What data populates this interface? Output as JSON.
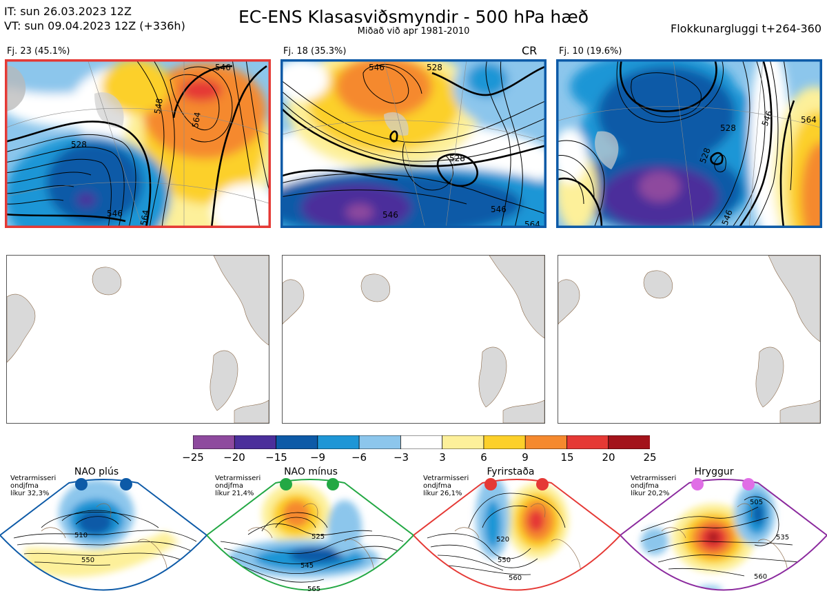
{
  "header": {
    "it_line": "IT: sun 26.03.2023 12Z",
    "vt_line": "VT: sun 09.04.2023 12Z  (+336h)",
    "title": "EC-ENS Klasasviðsmyndir - 500 hPa hæð",
    "subtitle": "Miðað við apr 1981-2010",
    "window": "Flokkunargluggi t+264-360"
  },
  "clusters": [
    {
      "label": "Fj. 23 (45.1%)",
      "members": 23,
      "percent": 45.1,
      "border_color": "#e53935",
      "contours": [
        "528",
        "546",
        "546",
        "548",
        "564",
        "564"
      ]
    },
    {
      "label": "Fj. 18 (35.3%)",
      "members": 18,
      "percent": 35.3,
      "border_color": "#0d5aa7",
      "tag": "CR",
      "contours": [
        "546",
        "528",
        "528",
        "546",
        "546",
        "564"
      ]
    },
    {
      "label": "Fj. 10 (19.6%)",
      "members": 10,
      "percent": 19.6,
      "border_color": "#0d5aa7",
      "contours": [
        "528",
        "528",
        "546",
        "564",
        "546"
      ]
    }
  ],
  "colorbar": {
    "ticks": [
      "−25",
      "−20",
      "−15",
      "−9",
      "−6",
      "−3",
      "3",
      "6",
      "9",
      "15",
      "20",
      "25"
    ],
    "colors": [
      "#8e4a9e",
      "#4b2f9b",
      "#0d5aa7",
      "#1e96d6",
      "#8cc6ec",
      "#ffffff",
      "#fdf09a",
      "#fcd02a",
      "#f5892e",
      "#e53935",
      "#a3131b"
    ]
  },
  "regimes": [
    {
      "name": "NAO plús",
      "season": "Vetrarmisseri",
      "level": "ondjfma",
      "prob": "líkur 32,3%",
      "color": "#0d5aa7",
      "contours": [
        "510",
        "550"
      ]
    },
    {
      "name": "NAO mínus",
      "season": "Vetrarmisseri",
      "level": "ondjfma",
      "prob": "líkur 21,4%",
      "color": "#23a844",
      "contours": [
        "525",
        "545",
        "565"
      ]
    },
    {
      "name": "Fyrirstaða",
      "season": "Vetrarmisseri",
      "level": "ondjfma",
      "prob": "líkur 26,1%",
      "color": "#e53935",
      "contours": [
        "520",
        "550",
        "560"
      ]
    },
    {
      "name": "Hryggur",
      "season": "Vetrarmisseri",
      "level": "ondjfma",
      "prob": "líkur 20,2%",
      "color": "#e06ee6",
      "contours": [
        "505",
        "535",
        "560"
      ]
    }
  ]
}
